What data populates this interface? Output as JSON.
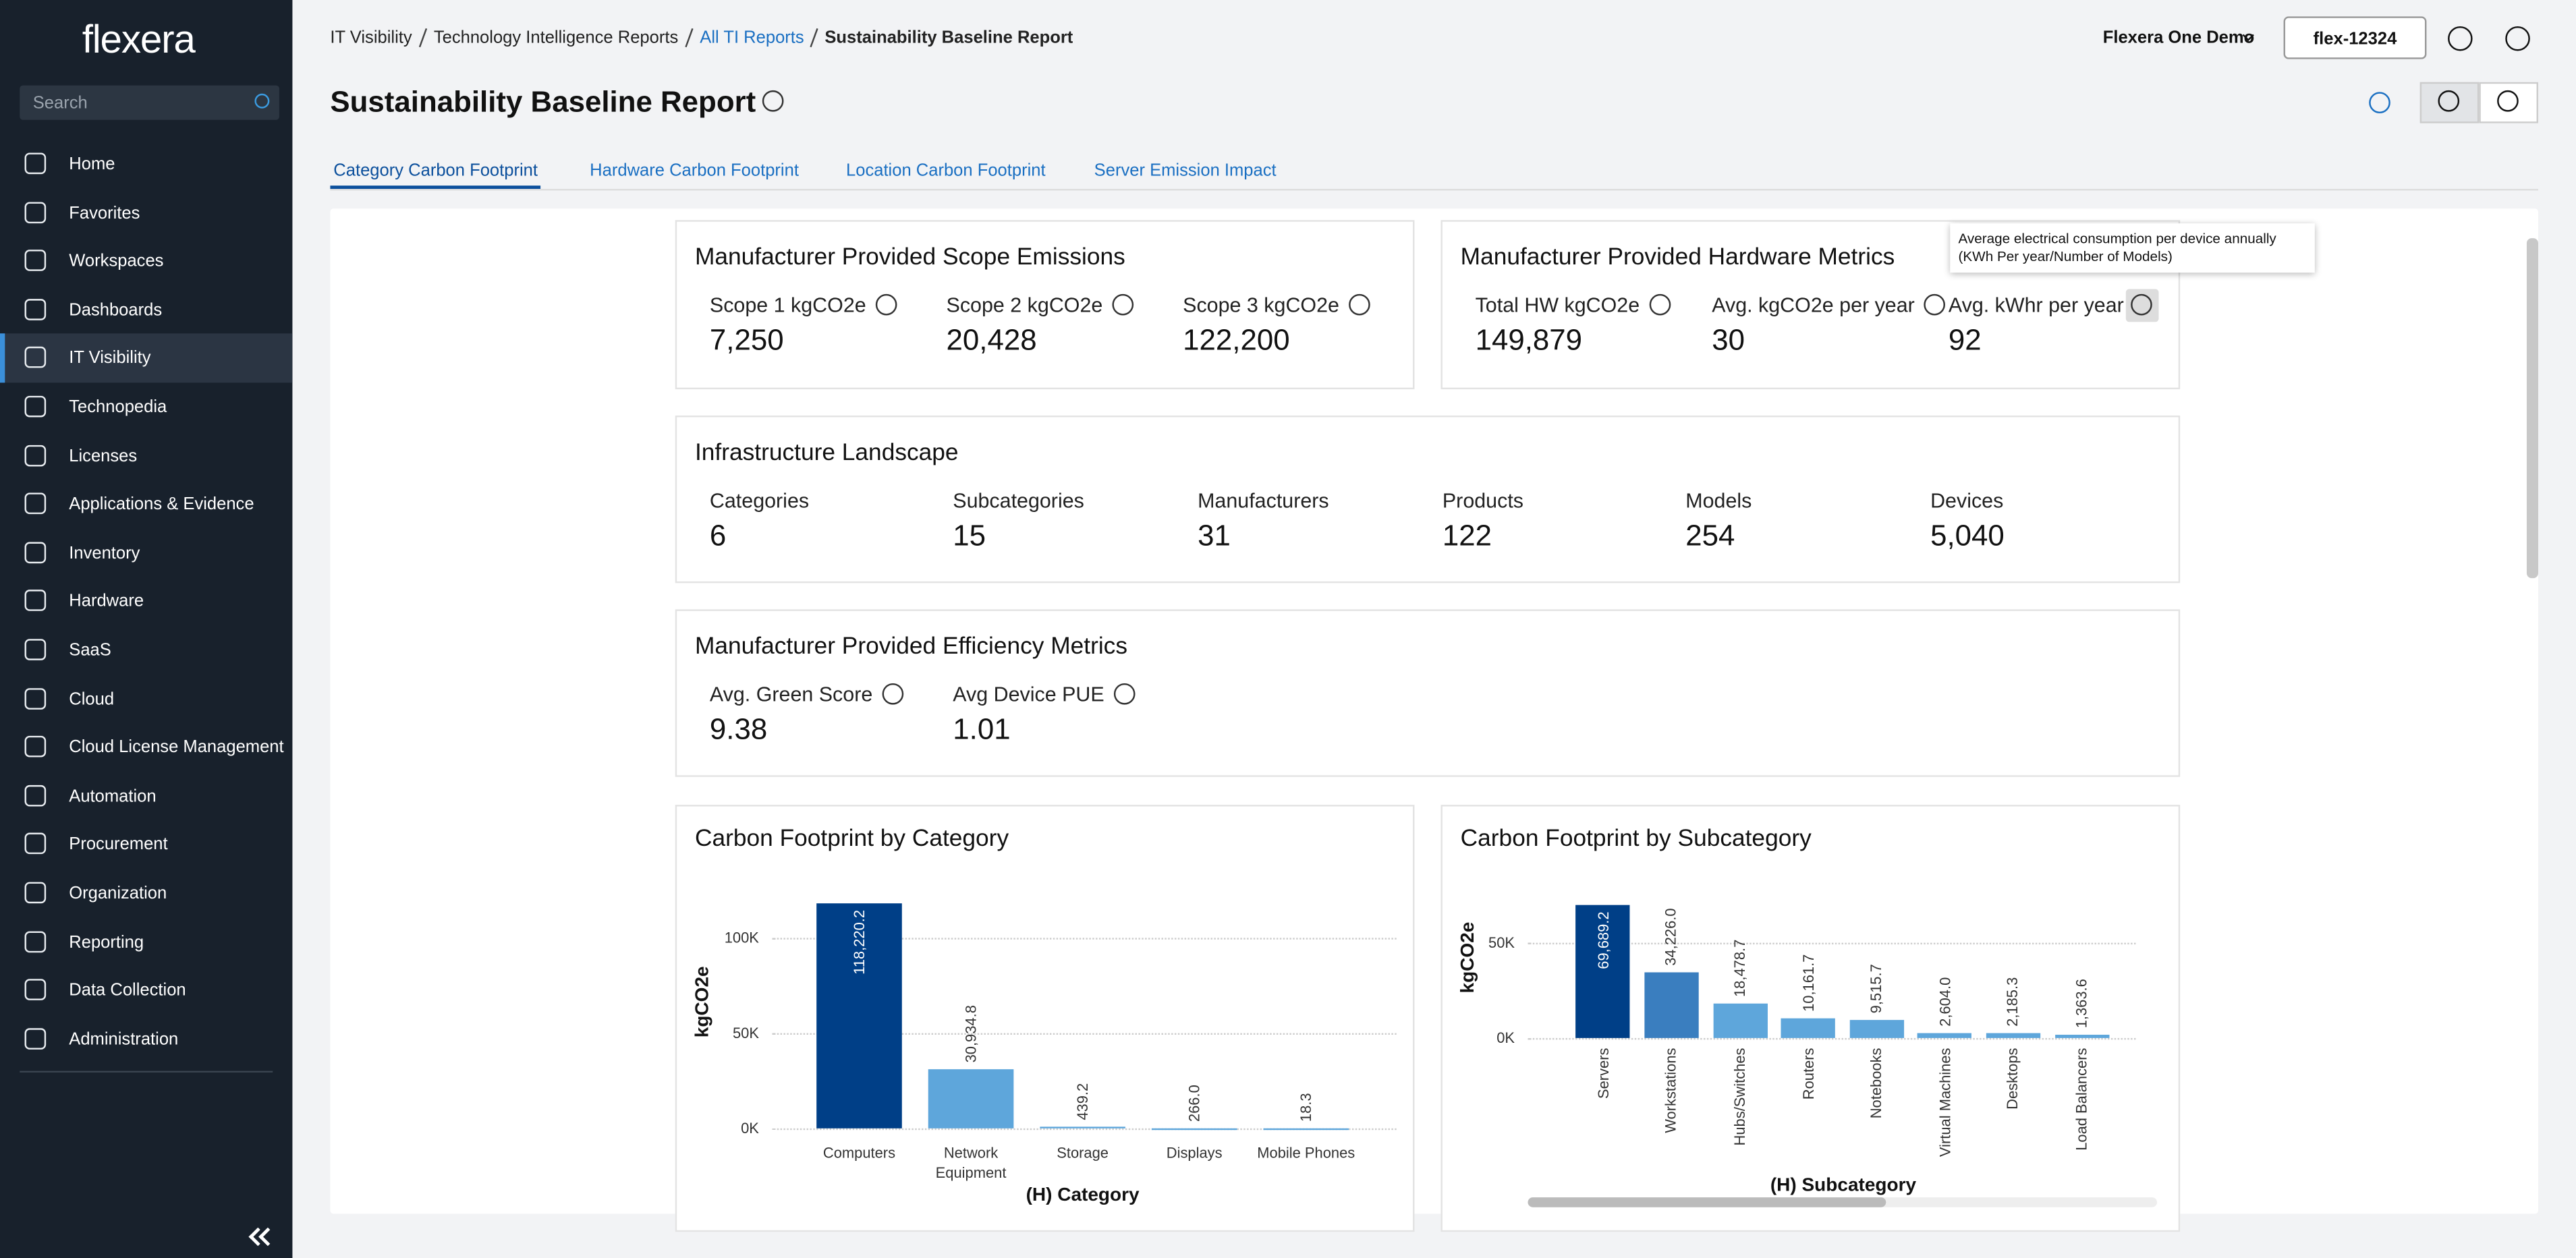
{
  "sidebar": {
    "logo": "flexera",
    "search": "Search",
    "nav": [
      "Home",
      "Favorites",
      "Workspaces",
      "Dashboards",
      "IT Visibility",
      "Technopedia",
      "Licenses",
      "Applications & Evidence",
      "Inventory",
      "Hardware",
      "SaaS",
      "Cloud",
      "Cloud License Management",
      "Automation",
      "Procurement",
      "Organization",
      "Reporting",
      "Data Collection",
      "Administration"
    ],
    "active": 4
  },
  "breadcrumb": [
    "IT Visibility",
    "Technology Intelligence Reports",
    "All TI Reports",
    "Sustainability Baseline Report"
  ],
  "header": {
    "title": "Sustainability Baseline Report",
    "account": "Flexera One Demo",
    "org": "flex-12324"
  },
  "tabs": [
    "Category Carbon Footprint",
    "Hardware Carbon Footprint",
    "Location Carbon Footprint",
    "Server Emission Impact"
  ],
  "cards": [
    {
      "title": "Manufacturer Provided Scope Emissions",
      "metrics": [
        {
          "label": "Scope 1 kgCO2e",
          "value": "7,250"
        },
        {
          "label": "Scope 2 kgCO2e",
          "value": "20,428"
        },
        {
          "label": "Scope 3 kgCO2e",
          "value": "122,200"
        }
      ]
    },
    {
      "title": "Manufacturer Provided Hardware Metrics",
      "metrics": [
        {
          "label": "Total HW kgCO2e",
          "value": "149,879"
        },
        {
          "label": "Avg. kgCO2e per year",
          "value": "30"
        },
        {
          "label": "Avg. kWhr per year",
          "value": "92"
        }
      ]
    },
    {
      "title": "Infrastructure Landscape",
      "metrics": [
        {
          "label": "Categories",
          "value": "6"
        },
        {
          "label": "Subcategories",
          "value": "15"
        },
        {
          "label": "Manufacturers",
          "value": "31"
        },
        {
          "label": "Products",
          "value": "122"
        },
        {
          "label": "Models",
          "value": "254"
        },
        {
          "label": "Devices",
          "value": "5,040"
        }
      ]
    },
    {
      "title": "Manufacturer Provided Efficiency Metrics",
      "metrics": [
        {
          "label": "Avg. Green Score",
          "value": "9.38"
        },
        {
          "label": "Avg Device PUE",
          "value": "1.01"
        }
      ]
    }
  ],
  "tooltip": "Average electrical consumption per device annually (KWh Per year/Number of Models)",
  "charts": [
    {
      "type": "bar",
      "title": "Carbon Footprint by Category",
      "y_label": "kgCO2e",
      "x_label": "(H) Category",
      "categories": [
        "Computers",
        "Network Equipment",
        "Storage",
        "Displays",
        "Mobile Phones"
      ],
      "values": [
        118220.2,
        30934.8,
        439.2,
        266.0,
        18.3
      ],
      "value_labels": [
        "118,220.2",
        "30,934.8",
        "439.2",
        "266.0",
        "18.3"
      ],
      "colors": [
        "#003f87",
        "#5ea6db",
        "#5ea6db",
        "#5ea6db",
        "#5ea6db"
      ],
      "ylim": [
        0,
        120000
      ],
      "yticks": [
        {
          "value": 0,
          "label": "0K"
        },
        {
          "value": 50000,
          "label": "50K"
        },
        {
          "value": 100000,
          "label": "100K"
        }
      ],
      "grid": true
    },
    {
      "type": "bar",
      "title": "Carbon Footprint by Subcategory",
      "y_label": "kgCO2e",
      "x_label": "(H) Subcategory",
      "categories": [
        "Servers",
        "Workstations",
        "Hubs/Switches",
        "Routers",
        "Notebooks",
        "Virtual Machines",
        "Desktops",
        "Load Balancers"
      ],
      "values": [
        69689.2,
        34226.0,
        18478.7,
        10161.7,
        9515.7,
        2604.0,
        2185.3,
        1363.6
      ],
      "value_labels": [
        "69,689.2",
        "34,226.0",
        "18,478.7",
        "10,161.7",
        "9,515.7",
        "2,604.0",
        "2,185.3",
        "1,363.6"
      ],
      "colors": [
        "#003f87",
        "#3a7ebf",
        "#5ea6db",
        "#5ea6db",
        "#5ea6db",
        "#5ea6db",
        "#5ea6db",
        "#5ea6db"
      ],
      "ylim": [
        0,
        70000
      ],
      "yticks": [
        {
          "value": 0,
          "label": "0K"
        },
        {
          "value": 50000,
          "label": "50K"
        }
      ],
      "grid": true
    }
  ]
}
